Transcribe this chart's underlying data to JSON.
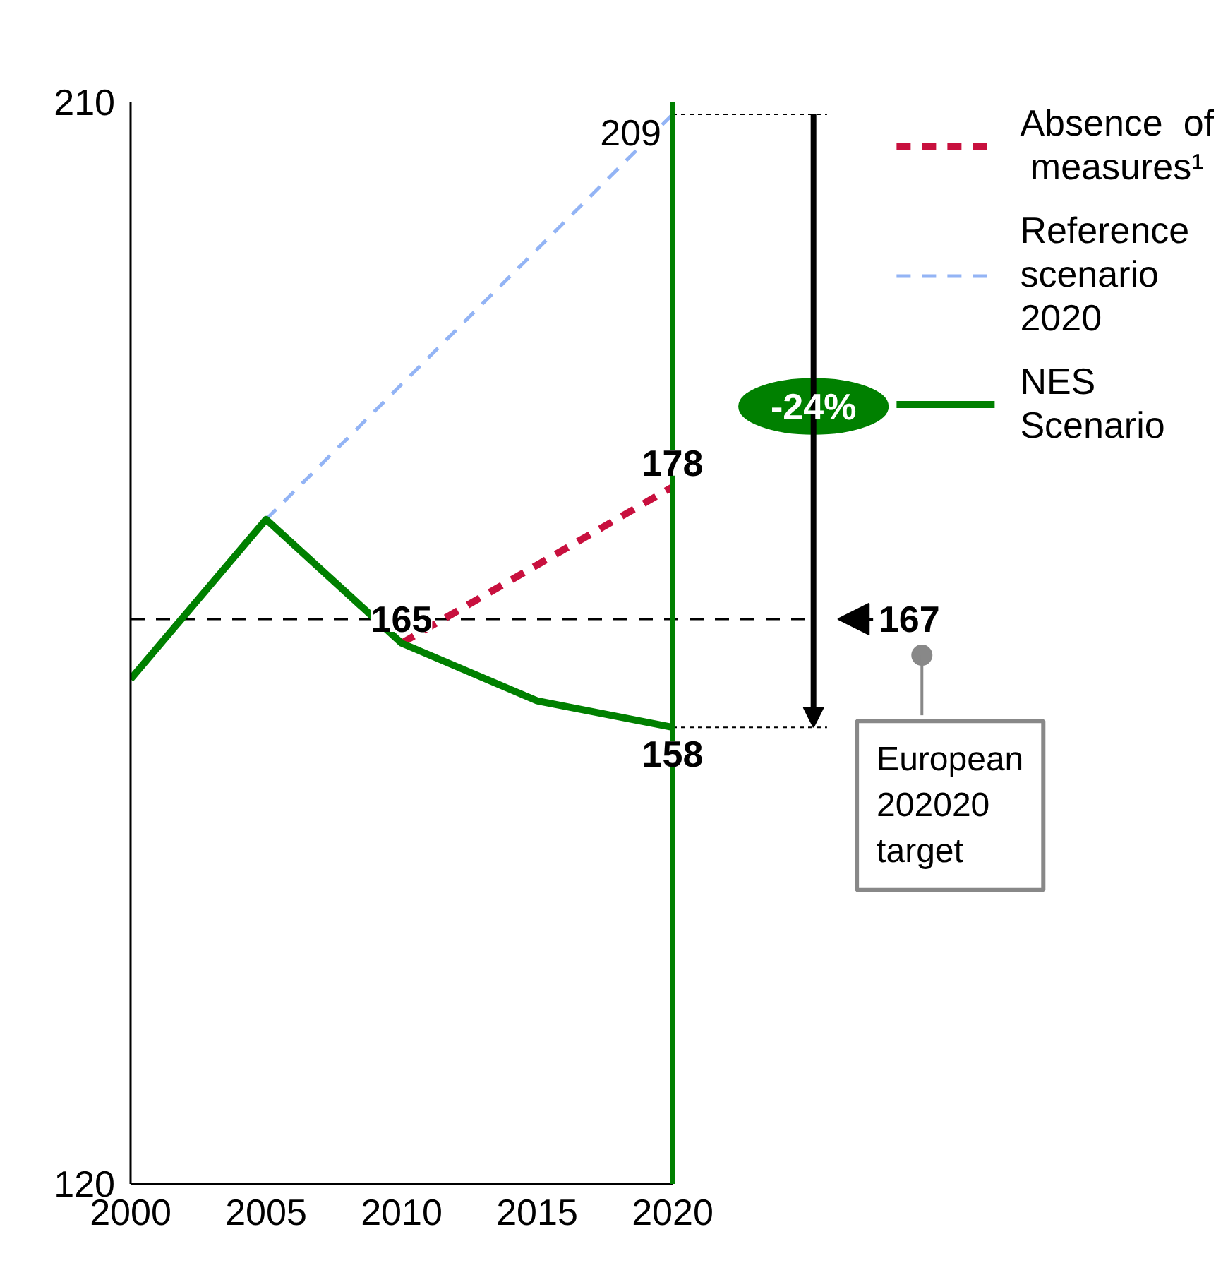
{
  "chart_data": {
    "type": "line",
    "x": [
      2000,
      2005,
      2010,
      2015,
      2020
    ],
    "series": [
      {
        "name": "Absence of measures¹",
        "color": "#c8103e",
        "line_style": "dashed",
        "x": [
          2010,
          2015,
          2020
        ],
        "values": [
          165,
          171.5,
          178
        ],
        "value_labels": [
          null,
          null,
          "178"
        ]
      },
      {
        "name": "Reference scenario 2020",
        "color": "#93b4f5",
        "line_style": "dashed",
        "x": [
          2005,
          2020
        ],
        "values": [
          175.3,
          209
        ],
        "value_labels": [
          null,
          "209"
        ]
      },
      {
        "name": "NES Scenario",
        "color": "#008000",
        "line_style": "solid",
        "values": [
          162,
          175.3,
          165,
          160.2,
          158
        ],
        "value_labels": [
          null,
          null,
          "165",
          null,
          "158"
        ]
      }
    ],
    "xlim": [
      2000,
      2020
    ],
    "xticks": [
      2000,
      2005,
      2010,
      2015,
      2020
    ],
    "ylim": [
      120,
      210
    ],
    "yticks": [
      120,
      210
    ],
    "ref_lines": [
      {
        "axis": "x",
        "value": 2020,
        "color": "#008000",
        "line_style": "solid"
      },
      {
        "axis": "y",
        "value": 167,
        "label": "167",
        "color": "#000000",
        "line_style": "dashed"
      }
    ],
    "annotations": [
      "-24%",
      "European 202020 target"
    ],
    "grid": false,
    "legend": "top right"
  }
}
